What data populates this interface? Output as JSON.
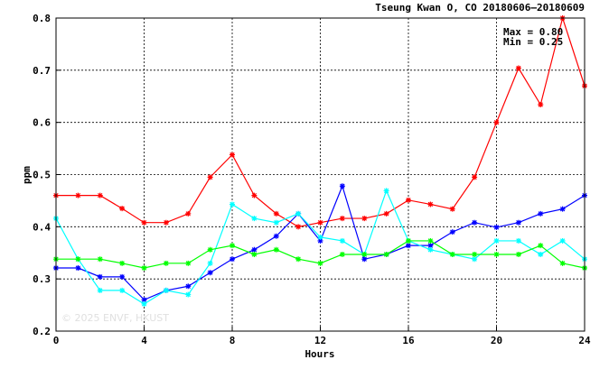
{
  "chart_data": {
    "type": "line",
    "title": "Tseung Kwan O, CO 20180606–20180609",
    "xlabel": "Hours",
    "ylabel": "ppm",
    "xlim": [
      0,
      24
    ],
    "ylim": [
      0.2,
      0.8
    ],
    "xticks": [
      0,
      4,
      8,
      12,
      16,
      20,
      24
    ],
    "yticks": [
      0.2,
      0.3,
      0.4,
      0.5,
      0.6,
      0.7,
      0.8
    ],
    "grid": true,
    "annotations": [
      "Max = 0.80",
      "Min = 0.25"
    ],
    "watermark": "© 2025  ENVF, HKUST",
    "x": [
      0,
      1,
      2,
      3,
      4,
      5,
      6,
      7,
      8,
      9,
      10,
      11,
      12,
      13,
      14,
      15,
      16,
      17,
      18,
      19,
      20,
      21,
      22,
      23,
      24
    ],
    "series": [
      {
        "color": "#ff0000",
        "values": [
          0.46,
          0.46,
          0.46,
          0.435,
          0.408,
          0.408,
          0.425,
          0.495,
          0.538,
          0.46,
          0.425,
          0.4,
          0.408,
          0.416,
          0.416,
          0.425,
          0.451,
          0.443,
          0.434,
          0.495,
          0.6,
          0.704,
          0.634,
          0.8,
          0.67
        ]
      },
      {
        "color": "#0000ff",
        "values": [
          0.321,
          0.321,
          0.304,
          0.304,
          0.26,
          0.278,
          0.286,
          0.312,
          0.338,
          0.356,
          0.382,
          0.425,
          0.373,
          0.478,
          0.338,
          0.347,
          0.364,
          0.364,
          0.39,
          0.408,
          0.399,
          0.408,
          0.425,
          0.434,
          0.46
        ]
      },
      {
        "color": "#00ffff",
        "values": [
          0.416,
          0.338,
          0.278,
          0.278,
          0.252,
          0.278,
          0.27,
          0.33,
          0.443,
          0.416,
          0.408,
          0.425,
          0.38,
          0.373,
          0.347,
          0.469,
          0.373,
          0.356,
          0.347,
          0.338,
          0.373,
          0.373,
          0.347,
          0.373,
          0.338
        ]
      },
      {
        "color": "#00ff00",
        "values": [
          0.338,
          0.338,
          0.338,
          0.33,
          0.321,
          0.33,
          0.33,
          0.356,
          0.364,
          0.347,
          0.356,
          0.338,
          0.33,
          0.347,
          0.347,
          0.347,
          0.373,
          0.373,
          0.347,
          0.347,
          0.347,
          0.347,
          0.364,
          0.33,
          0.321
        ]
      }
    ]
  }
}
